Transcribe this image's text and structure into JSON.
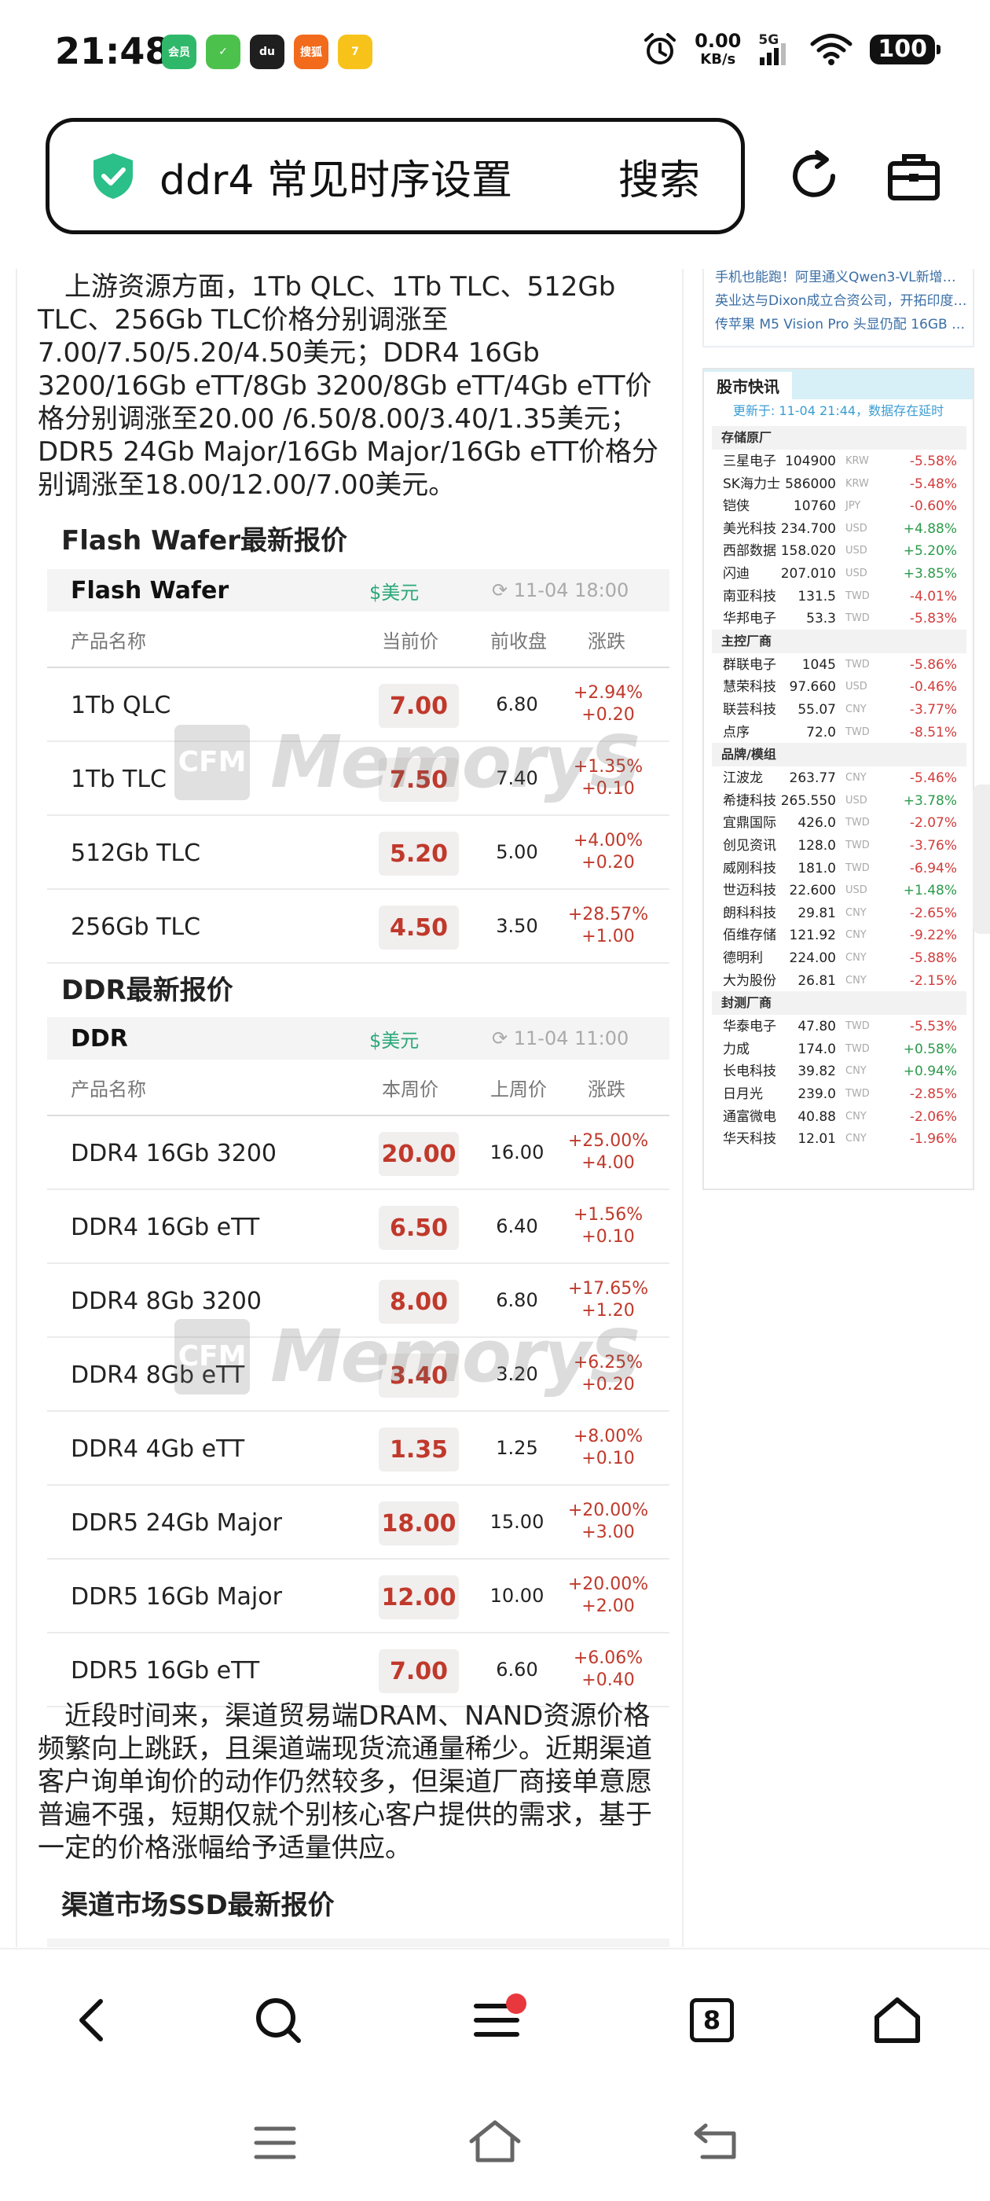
{
  "status_bar": {
    "time": "21:48",
    "app_icons": [
      {
        "name": "app-icon-1",
        "color": "#2fb86a",
        "label": "会员"
      },
      {
        "name": "app-icon-2",
        "color": "#4cc24c",
        "label": "✓"
      },
      {
        "name": "app-icon-3",
        "color": "#1f1f1f",
        "label": "du"
      },
      {
        "name": "app-icon-4",
        "color": "#f26a1b",
        "label": "搜狐"
      },
      {
        "name": "app-icon-5",
        "color": "#f7c31a",
        "label": "7"
      }
    ],
    "net_speed": "0.00",
    "net_unit": "KB/s",
    "signal": "5G",
    "battery": "100"
  },
  "address_bar": {
    "query": "ddr4 常见时序设置",
    "search_label": "搜索"
  },
  "article": {
    "para1": "上游资源方面，1Tb QLC、1Tb TLC、512Gb TLC、256Gb TLC价格分别调涨至7.00/7.50/5.20/4.50美元；DDR4 16Gb 3200/16Gb eTT/8Gb 3200/8Gb eTT/4Gb eTT价格分别调涨至20.00 /6.50/8.00/3.40/1.35美元；DDR5 24Gb Major/16Gb Major/16Gb eTT价格分别调涨至18.00/12.00/7.00美元。",
    "flash_section_title": "Flash Wafer最新报价",
    "flash_table": {
      "name": "Flash Wafer",
      "currency": "$美元",
      "time": "11-04 18:00",
      "headers": [
        "产品名称",
        "当前价",
        "前收盘",
        "涨跌"
      ],
      "rows": [
        {
          "name": "1Tb QLC",
          "price": "7.00",
          "prev": "6.80",
          "pct": "+2.94%",
          "diff": "+0.20"
        },
        {
          "name": "1Tb TLC",
          "price": "7.50",
          "prev": "7.40",
          "pct": "+1.35%",
          "diff": "+0.10"
        },
        {
          "name": "512Gb TLC",
          "price": "5.20",
          "prev": "5.00",
          "pct": "+4.00%",
          "diff": "+0.20"
        },
        {
          "name": "256Gb TLC",
          "price": "4.50",
          "prev": "3.50",
          "pct": "+28.57%",
          "diff": "+1.00"
        }
      ]
    },
    "ddr_section_title": "DDR最新报价",
    "ddr_table": {
      "name": "DDR",
      "currency": "$美元",
      "time": "11-04 11:00",
      "headers": [
        "产品名称",
        "本周价",
        "上周价",
        "涨跌"
      ],
      "rows": [
        {
          "name": "DDR4 16Gb 3200",
          "price": "20.00",
          "prev": "16.00",
          "pct": "+25.00%",
          "diff": "+4.00"
        },
        {
          "name": "DDR4 16Gb eTT",
          "price": "6.50",
          "prev": "6.40",
          "pct": "+1.56%",
          "diff": "+0.10"
        },
        {
          "name": "DDR4 8Gb 3200",
          "price": "8.00",
          "prev": "6.80",
          "pct": "+17.65%",
          "diff": "+1.20"
        },
        {
          "name": "DDR4 8Gb eTT",
          "price": "3.40",
          "prev": "3.20",
          "pct": "+6.25%",
          "diff": "+0.20"
        },
        {
          "name": "DDR4 4Gb eTT",
          "price": "1.35",
          "prev": "1.25",
          "pct": "+8.00%",
          "diff": "+0.10"
        },
        {
          "name": "DDR5 24Gb Major",
          "price": "18.00",
          "prev": "15.00",
          "pct": "+20.00%",
          "diff": "+3.00"
        },
        {
          "name": "DDR5 16Gb Major",
          "price": "12.00",
          "prev": "10.00",
          "pct": "+20.00%",
          "diff": "+2.00"
        },
        {
          "name": "DDR5 16Gb eTT",
          "price": "7.00",
          "prev": "6.60",
          "pct": "+6.06%",
          "diff": "+0.40"
        }
      ]
    },
    "para2": "近段时间来，渠道贸易端DRAM、NAND资源价格频繁向上跳跃，且渠道端现货流通量稀少。近期渠道客户询单询价的动作仍然较多，但渠道厂商接单意愿普遍不强，短期仅就个别核心客户提供的需求，基于一定的价格涨幅给予适量供应。",
    "ssd_section_title": "渠道市场SSD最新报价",
    "watermark_badge": "CFM",
    "watermark_text": "MemoryS"
  },
  "sidebar": {
    "news": [
      "手机也能跑！阿里通义Qwen3-VL新增…",
      "英业达与Dixon成立合资公司，开拓印度…",
      "传苹果 M5 Vision Pro 头显仍配 16GB …"
    ],
    "stock": {
      "title": "股市快讯",
      "updated": "更新于: 11-04 21:44，数据存在延时",
      "groups": [
        {
          "category": "存储原厂",
          "items": [
            {
              "name": "三星电子",
              "price": "104900",
              "cur": "KRW",
              "chg": "-5.58%"
            },
            {
              "name": "SK海力士",
              "price": "586000",
              "cur": "KRW",
              "chg": "-5.48%"
            },
            {
              "name": "铠侠",
              "price": "10760",
              "cur": "JPY",
              "chg": "-0.60%"
            },
            {
              "name": "美光科技",
              "price": "234.700",
              "cur": "USD",
              "chg": "+4.88%"
            },
            {
              "name": "西部数据",
              "price": "158.020",
              "cur": "USD",
              "chg": "+5.20%"
            },
            {
              "name": "闪迪",
              "price": "207.010",
              "cur": "USD",
              "chg": "+3.85%"
            },
            {
              "name": "南亚科技",
              "price": "131.5",
              "cur": "TWD",
              "chg": "-4.01%"
            },
            {
              "name": "华邦电子",
              "price": "53.3",
              "cur": "TWD",
              "chg": "-5.83%"
            }
          ]
        },
        {
          "category": "主控厂商",
          "items": [
            {
              "name": "群联电子",
              "price": "1045",
              "cur": "TWD",
              "chg": "-5.86%"
            },
            {
              "name": "慧荣科技",
              "price": "97.660",
              "cur": "USD",
              "chg": "-0.46%"
            },
            {
              "name": "联芸科技",
              "price": "55.07",
              "cur": "CNY",
              "chg": "-3.77%"
            },
            {
              "name": "点序",
              "price": "72.0",
              "cur": "TWD",
              "chg": "-8.51%"
            }
          ]
        },
        {
          "category": "品牌/模组",
          "items": [
            {
              "name": "江波龙",
              "price": "263.77",
              "cur": "CNY",
              "chg": "-5.46%"
            },
            {
              "name": "希捷科技",
              "price": "265.550",
              "cur": "USD",
              "chg": "+3.78%"
            },
            {
              "name": "宜鼎国际",
              "price": "426.0",
              "cur": "TWD",
              "chg": "-2.07%"
            },
            {
              "name": "创见资讯",
              "price": "128.0",
              "cur": "TWD",
              "chg": "-3.76%"
            },
            {
              "name": "威刚科技",
              "price": "181.0",
              "cur": "TWD",
              "chg": "-6.94%"
            },
            {
              "name": "世迈科技",
              "price": "22.600",
              "cur": "USD",
              "chg": "+1.48%"
            },
            {
              "name": "朗科科技",
              "price": "29.81",
              "cur": "CNY",
              "chg": "-2.65%"
            },
            {
              "name": "佰维存储",
              "price": "121.92",
              "cur": "CNY",
              "chg": "-9.22%"
            },
            {
              "name": "德明利",
              "price": "224.00",
              "cur": "CNY",
              "chg": "-5.88%"
            },
            {
              "name": "大为股份",
              "price": "26.81",
              "cur": "CNY",
              "chg": "-2.15%"
            }
          ]
        },
        {
          "category": "封测厂商",
          "items": [
            {
              "name": "华泰电子",
              "price": "47.80",
              "cur": "TWD",
              "chg": "-5.53%"
            },
            {
              "name": "力成",
              "price": "174.0",
              "cur": "TWD",
              "chg": "+0.58%"
            },
            {
              "name": "长电科技",
              "price": "39.82",
              "cur": "CNY",
              "chg": "+0.94%"
            },
            {
              "name": "日月光",
              "price": "239.0",
              "cur": "TWD",
              "chg": "-2.85%"
            },
            {
              "name": "通富微电",
              "price": "40.88",
              "cur": "CNY",
              "chg": "-2.06%"
            },
            {
              "name": "华天科技",
              "price": "12.01",
              "cur": "CNY",
              "chg": "-1.96%"
            }
          ]
        }
      ]
    }
  },
  "browser_nav": {
    "tab_count": "8"
  },
  "colors": {
    "accent_red": "#c0392b",
    "accent_green": "#2aa87a",
    "link_blue": "#3a6ea5",
    "notification_dot": "#e8383d"
  }
}
